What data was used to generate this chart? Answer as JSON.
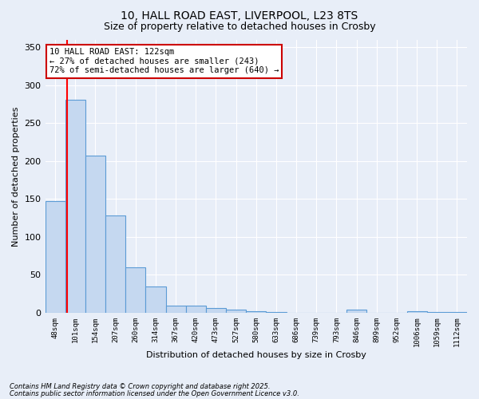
{
  "title_line1": "10, HALL ROAD EAST, LIVERPOOL, L23 8TS",
  "title_line2": "Size of property relative to detached houses in Crosby",
  "xlabel": "Distribution of detached houses by size in Crosby",
  "ylabel": "Number of detached properties",
  "footnote1": "Contains HM Land Registry data © Crown copyright and database right 2025.",
  "footnote2": "Contains public sector information licensed under the Open Government Licence v3.0.",
  "annotation_title": "10 HALL ROAD EAST: 122sqm",
  "annotation_line1": "← 27% of detached houses are smaller (243)",
  "annotation_line2": "72% of semi-detached houses are larger (640) →",
  "bar_labels": [
    "48sqm",
    "101sqm",
    "154sqm",
    "207sqm",
    "260sqm",
    "314sqm",
    "367sqm",
    "420sqm",
    "473sqm",
    "527sqm",
    "580sqm",
    "633sqm",
    "686sqm",
    "739sqm",
    "793sqm",
    "846sqm",
    "899sqm",
    "952sqm",
    "1006sqm",
    "1059sqm",
    "1112sqm"
  ],
  "bar_values": [
    147,
    281,
    207,
    128,
    60,
    35,
    9,
    9,
    6,
    4,
    2,
    1,
    0,
    0,
    0,
    4,
    0,
    0,
    2,
    1,
    1
  ],
  "bar_color": "#c5d8f0",
  "bar_edge_color": "#5b9bd5",
  "red_line_x": 0.575,
  "ylim": [
    0,
    360
  ],
  "yticks": [
    0,
    50,
    100,
    150,
    200,
    250,
    300,
    350
  ],
  "bg_color": "#e8eef8",
  "plot_bg_color": "#e8eef8",
  "grid_color": "#ffffff",
  "annotation_box_facecolor": "#ffffff",
  "annotation_box_edgecolor": "#cc0000",
  "title_fontsize": 10,
  "subtitle_fontsize": 9
}
